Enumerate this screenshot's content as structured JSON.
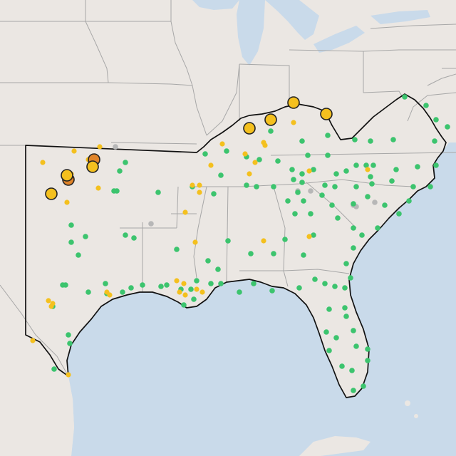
{
  "map": {
    "colors": {
      "land": "#ebe7e3",
      "water": "#c9daea",
      "state_border": "#a7a7a7",
      "region_outline": "#111111",
      "green": "#3cc46e",
      "yellow": "#f4c01e",
      "orange": "#e0842a",
      "gray": "#b7b7b7"
    },
    "status_legend": [
      "green",
      "yellow",
      "orange",
      "gray"
    ]
  }
}
